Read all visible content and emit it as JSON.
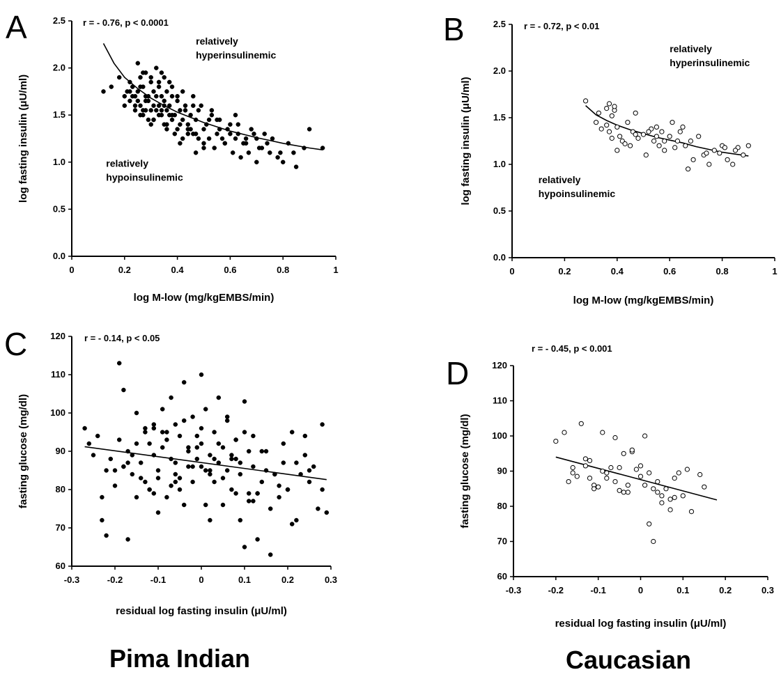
{
  "group_labels": {
    "left": "Pima Indian",
    "right": "Caucasian"
  },
  "chart_data": [
    {
      "panel": "A",
      "type": "scatter",
      "stat": "r = - 0.76, p < 0.0001",
      "xlabel": "log M-low (mg/kgEMBS/min)",
      "ylabel": "log fasting insulin (μU/ml)",
      "xlim": [
        0,
        1
      ],
      "ylim": [
        0,
        2.5
      ],
      "xticks": [
        "0",
        "0.2",
        "0.4",
        "0.6",
        "0.8",
        "1"
      ],
      "yticks": [
        "0.0",
        "0.5",
        "1.0",
        "1.5",
        "2.0",
        "2.5"
      ],
      "annotations": [
        {
          "lines": [
            "relatively",
            "hyperinsulinemic"
          ],
          "x": 0.47,
          "y": 2.25
        },
        {
          "lines": [
            "relatively",
            "hypoinsulinemic"
          ],
          "x": 0.13,
          "y": 0.95
        }
      ],
      "marker": "filled",
      "fit": {
        "kind": "curve",
        "x": [
          0.12,
          0.16,
          0.2,
          0.25,
          0.3,
          0.35,
          0.4,
          0.5,
          0.6,
          0.7,
          0.8,
          0.9,
          0.95
        ],
        "y": [
          2.26,
          2.05,
          1.9,
          1.78,
          1.68,
          1.6,
          1.53,
          1.42,
          1.33,
          1.26,
          1.2,
          1.15,
          1.13
        ]
      },
      "points": {
        "x": [
          0.12,
          0.15,
          0.18,
          0.2,
          0.2,
          0.21,
          0.22,
          0.22,
          0.23,
          0.24,
          0.24,
          0.25,
          0.25,
          0.26,
          0.26,
          0.27,
          0.27,
          0.28,
          0.28,
          0.29,
          0.3,
          0.3,
          0.31,
          0.31,
          0.32,
          0.33,
          0.33,
          0.34,
          0.34,
          0.35,
          0.35,
          0.36,
          0.36,
          0.37,
          0.38,
          0.38,
          0.39,
          0.4,
          0.4,
          0.41,
          0.42,
          0.43,
          0.44,
          0.45,
          0.46,
          0.47,
          0.48,
          0.5,
          0.51,
          0.52,
          0.53,
          0.55,
          0.56,
          0.58,
          0.59,
          0.6,
          0.62,
          0.63,
          0.65,
          0.67,
          0.69,
          0.7,
          0.72,
          0.74,
          0.76,
          0.79,
          0.82,
          0.85,
          0.88,
          0.95,
          0.25,
          0.28,
          0.31,
          0.34,
          0.37,
          0.3,
          0.33,
          0.27,
          0.4,
          0.43,
          0.46,
          0.38,
          0.35,
          0.32,
          0.29,
          0.26,
          0.36,
          0.39,
          0.42,
          0.45,
          0.48,
          0.52,
          0.5,
          0.54,
          0.57,
          0.6,
          0.63,
          0.66,
          0.68,
          0.71,
          0.75,
          0.78,
          0.8,
          0.84,
          0.9,
          0.22,
          0.24,
          0.27,
          0.3,
          0.33,
          0.36,
          0.41,
          0.44,
          0.47,
          0.49,
          0.53,
          0.56,
          0.61,
          0.64,
          0.7,
          0.73,
          0.23,
          0.26,
          0.29,
          0.32,
          0.35,
          0.38,
          0.41,
          0.44,
          0.47,
          0.5,
          0.55,
          0.58,
          0.62,
          0.66,
          0.34,
          0.37,
          0.31,
          0.28,
          0.42,
          0.46
        ],
        "y": [
          1.75,
          1.8,
          1.9,
          1.7,
          1.6,
          1.75,
          1.85,
          1.65,
          1.8,
          1.7,
          1.55,
          2.05,
          1.75,
          1.9,
          1.6,
          1.8,
          1.5,
          1.95,
          1.65,
          1.7,
          1.85,
          1.55,
          1.75,
          1.45,
          2.0,
          1.8,
          1.6,
          1.7,
          1.5,
          1.65,
          1.4,
          1.75,
          1.55,
          1.6,
          1.7,
          1.45,
          1.5,
          1.65,
          1.35,
          1.55,
          1.45,
          1.6,
          1.4,
          1.5,
          1.3,
          1.45,
          1.55,
          1.35,
          1.4,
          1.25,
          1.5,
          1.3,
          1.45,
          1.2,
          1.35,
          1.3,
          1.25,
          1.4,
          1.2,
          1.1,
          1.3,
          1.25,
          1.15,
          1.2,
          1.25,
          1.1,
          1.2,
          0.95,
          1.15,
          1.15,
          1.65,
          1.7,
          1.6,
          1.55,
          1.5,
          1.9,
          1.85,
          1.95,
          1.7,
          1.55,
          1.6,
          1.8,
          1.9,
          1.7,
          1.45,
          1.5,
          1.4,
          1.3,
          1.25,
          1.35,
          1.25,
          1.45,
          1.2,
          1.15,
          1.25,
          1.4,
          1.3,
          1.2,
          1.35,
          1.15,
          1.1,
          1.05,
          1.0,
          1.1,
          1.35,
          1.75,
          1.6,
          1.55,
          1.4,
          1.5,
          1.35,
          1.2,
          1.3,
          1.1,
          1.6,
          1.55,
          1.35,
          1.1,
          1.05,
          1.0,
          1.3,
          1.7,
          1.8,
          1.65,
          1.55,
          1.6,
          1.5,
          1.4,
          1.35,
          1.3,
          1.15,
          1.45,
          1.2,
          1.5,
          1.25,
          1.95,
          1.85,
          1.45,
          1.55,
          1.75,
          1.7
        ]
      }
    },
    {
      "panel": "B",
      "type": "scatter",
      "stat": "r = - 0.72, p < 0.01",
      "xlabel": "log M-low (mg/kgEMBS/min)",
      "ylabel": "log fasting insulin (μU/ml)",
      "xlim": [
        0,
        1
      ],
      "ylim": [
        0,
        2.5
      ],
      "xticks": [
        "0",
        "0.2",
        "0.4",
        "0.6",
        "0.8",
        "1"
      ],
      "yticks": [
        "0.0",
        "0.5",
        "1.0",
        "1.5",
        "2.0",
        "2.5"
      ],
      "annotations": [
        {
          "lines": [
            "relatively",
            "hyperinsulinemic"
          ],
          "x": 0.6,
          "y": 2.2
        },
        {
          "lines": [
            "relatively",
            "hypoinsulinemic"
          ],
          "x": 0.1,
          "y": 0.8
        }
      ],
      "marker": "open",
      "fit": {
        "kind": "curve",
        "x": [
          0.28,
          0.32,
          0.36,
          0.4,
          0.45,
          0.5,
          0.55,
          0.6,
          0.65,
          0.7,
          0.75,
          0.8,
          0.85,
          0.9
        ],
        "y": [
          1.63,
          1.53,
          1.47,
          1.42,
          1.37,
          1.33,
          1.29,
          1.26,
          1.23,
          1.19,
          1.16,
          1.13,
          1.11,
          1.09
        ]
      },
      "points": {
        "x": [
          0.28,
          0.32,
          0.33,
          0.34,
          0.36,
          0.37,
          0.37,
          0.38,
          0.38,
          0.39,
          0.4,
          0.4,
          0.41,
          0.42,
          0.44,
          0.45,
          0.46,
          0.47,
          0.48,
          0.5,
          0.51,
          0.53,
          0.54,
          0.55,
          0.55,
          0.56,
          0.57,
          0.58,
          0.6,
          0.61,
          0.62,
          0.63,
          0.65,
          0.66,
          0.67,
          0.69,
          0.71,
          0.73,
          0.75,
          0.77,
          0.79,
          0.8,
          0.82,
          0.84,
          0.86,
          0.88,
          0.9,
          0.36,
          0.39,
          0.43,
          0.47,
          0.52,
          0.58,
          0.64,
          0.68,
          0.74,
          0.81,
          0.85
        ],
        "y": [
          1.68,
          1.45,
          1.55,
          1.38,
          1.6,
          1.65,
          1.35,
          1.52,
          1.28,
          1.58,
          1.4,
          1.15,
          1.3,
          1.25,
          1.45,
          1.2,
          1.35,
          1.55,
          1.28,
          1.32,
          1.1,
          1.38,
          1.25,
          1.4,
          1.3,
          1.2,
          1.35,
          1.25,
          1.3,
          1.45,
          1.18,
          1.25,
          1.4,
          1.2,
          0.95,
          1.05,
          1.3,
          1.1,
          1.0,
          1.15,
          1.12,
          1.2,
          1.05,
          1.0,
          1.18,
          1.1,
          1.2,
          1.42,
          1.62,
          1.22,
          1.32,
          1.35,
          1.15,
          1.35,
          1.25,
          1.12,
          1.18,
          1.15
        ]
      }
    },
    {
      "panel": "C",
      "type": "scatter",
      "stat": "r = - 0.14, p < 0.05",
      "xlabel": "residual log fasting insulin (μU/ml)",
      "ylabel": "fasting glucose (mg/dl)",
      "xlim": [
        -0.3,
        0.3
      ],
      "ylim": [
        60,
        120
      ],
      "xticks": [
        "-0.3",
        "-0.2",
        "-0.1",
        "0",
        "0.1",
        "0.2",
        "0.3"
      ],
      "yticks": [
        "60",
        "70",
        "80",
        "90",
        "100",
        "110",
        "120"
      ],
      "annotations": [],
      "marker": "filled",
      "fit": {
        "kind": "line",
        "x": [
          -0.27,
          0.29
        ],
        "y": [
          91.2,
          82.6
        ]
      },
      "points": {
        "x": [
          -0.27,
          -0.26,
          -0.24,
          -0.23,
          -0.22,
          -0.21,
          -0.2,
          -0.19,
          -0.18,
          -0.17,
          -0.17,
          -0.16,
          -0.15,
          -0.15,
          -0.14,
          -0.13,
          -0.13,
          -0.12,
          -0.12,
          -0.11,
          -0.11,
          -0.1,
          -0.1,
          -0.09,
          -0.09,
          -0.08,
          -0.08,
          -0.07,
          -0.07,
          -0.06,
          -0.06,
          -0.05,
          -0.05,
          -0.04,
          -0.04,
          -0.03,
          -0.03,
          -0.02,
          -0.02,
          -0.01,
          -0.01,
          0.0,
          0.0,
          0.01,
          0.01,
          0.02,
          0.02,
          0.03,
          0.03,
          0.04,
          0.04,
          0.05,
          0.05,
          0.06,
          0.06,
          0.07,
          0.07,
          0.08,
          0.08,
          0.09,
          0.09,
          0.1,
          0.1,
          0.11,
          0.11,
          0.12,
          0.12,
          0.13,
          0.14,
          0.15,
          0.16,
          0.17,
          0.18,
          0.19,
          0.2,
          0.21,
          0.22,
          0.23,
          0.24,
          0.25,
          0.26,
          0.27,
          0.28,
          0.29,
          -0.25,
          -0.19,
          -0.18,
          -0.14,
          -0.11,
          -0.08,
          -0.06,
          -0.03,
          0.0,
          0.02,
          0.05,
          0.08,
          0.11,
          0.14,
          0.18,
          -0.22,
          -0.16,
          -0.12,
          -0.09,
          -0.05,
          -0.02,
          0.01,
          0.04,
          0.07,
          0.1,
          0.13,
          0.17,
          0.21,
          -0.2,
          -0.15,
          -0.1,
          -0.04,
          0.0,
          0.06,
          0.12,
          0.16,
          0.2,
          0.25,
          -0.17,
          -0.13,
          -0.07,
          -0.01,
          0.03,
          0.09,
          0.15,
          0.19,
          0.24,
          -0.23,
          -0.18,
          -0.11,
          -0.06,
          0.02,
          0.08,
          0.13,
          0.22,
          0.28
        ],
        "y": [
          96,
          92,
          94,
          72,
          68,
          88,
          85,
          113,
          106,
          67,
          90,
          84,
          78,
          100,
          87,
          95,
          82,
          92,
          80,
          89,
          97,
          85,
          74,
          91,
          101,
          93,
          78,
          88,
          104,
          84,
          97,
          80,
          94,
          108,
          76,
          90,
          86,
          99,
          82,
          88,
          94,
          92,
          110,
          85,
          101,
          72,
          89,
          95,
          82,
          87,
          104,
          76,
          91,
          85,
          98,
          80,
          89,
          93,
          79,
          87,
          84,
          103,
          65,
          90,
          79,
          86,
          94,
          67,
          82,
          90,
          75,
          84,
          78,
          87,
          80,
          95,
          72,
          84,
          89,
          82,
          86,
          75,
          97,
          74,
          89,
          93,
          86,
          83,
          79,
          95,
          87,
          91,
          96,
          84,
          83,
          88,
          77,
          90,
          81,
          85,
          89,
          80,
          95,
          83,
          86,
          76,
          92,
          88,
          95,
          79,
          84,
          71,
          81,
          92,
          83,
          98,
          86,
          99,
          77,
          63,
          80,
          85,
          87,
          96,
          81,
          91,
          88,
          72,
          85,
          92,
          94,
          78,
          86,
          96,
          82,
          85,
          93,
          79,
          87,
          80
        ]
      }
    },
    {
      "panel": "D",
      "type": "scatter",
      "stat": "r = - 0.45, p < 0.001",
      "xlabel": "residual log fasting insulin (μU/ml)",
      "ylabel": "fasting glucose (mg/dl)",
      "xlim": [
        -0.3,
        0.3
      ],
      "ylim": [
        60,
        120
      ],
      "xticks": [
        "-0.3",
        "-0.2",
        "-0.1",
        "0",
        "0.1",
        "0.2",
        "0.3"
      ],
      "yticks": [
        "60",
        "70",
        "80",
        "90",
        "100",
        "110",
        "120"
      ],
      "annotations": [],
      "marker": "open",
      "fit": {
        "kind": "line",
        "x": [
          -0.2,
          0.18
        ],
        "y": [
          94.0,
          81.8
        ]
      },
      "points": {
        "x": [
          -0.2,
          -0.18,
          -0.17,
          -0.16,
          -0.15,
          -0.14,
          -0.13,
          -0.12,
          -0.11,
          -0.1,
          -0.09,
          -0.08,
          -0.07,
          -0.06,
          -0.05,
          -0.04,
          -0.03,
          -0.02,
          -0.01,
          0.0,
          0.01,
          0.02,
          0.03,
          0.04,
          0.05,
          0.06,
          0.07,
          0.08,
          0.09,
          0.1,
          0.12,
          0.14,
          0.15,
          -0.16,
          -0.13,
          -0.11,
          -0.08,
          -0.06,
          -0.03,
          -0.02,
          0.0,
          0.02,
          0.05,
          0.07,
          -0.05,
          -0.09,
          -0.12,
          0.01,
          0.03,
          0.08,
          0.11,
          -0.04,
          0.04
        ],
        "y": [
          98.5,
          101,
          87,
          89.5,
          88.5,
          103.5,
          91.5,
          88,
          86,
          85.5,
          101,
          88,
          91,
          99.5,
          91,
          95,
          84,
          95.5,
          90.5,
          88.5,
          100,
          75,
          70,
          87,
          81,
          85,
          79,
          88,
          89.5,
          83,
          78.5,
          89,
          85.5,
          91,
          93.5,
          85,
          89.5,
          87,
          86,
          96,
          91.5,
          89.5,
          83,
          82,
          84.5,
          90,
          93,
          86,
          85,
          82.5,
          90.5,
          84,
          84
        ]
      }
    }
  ]
}
